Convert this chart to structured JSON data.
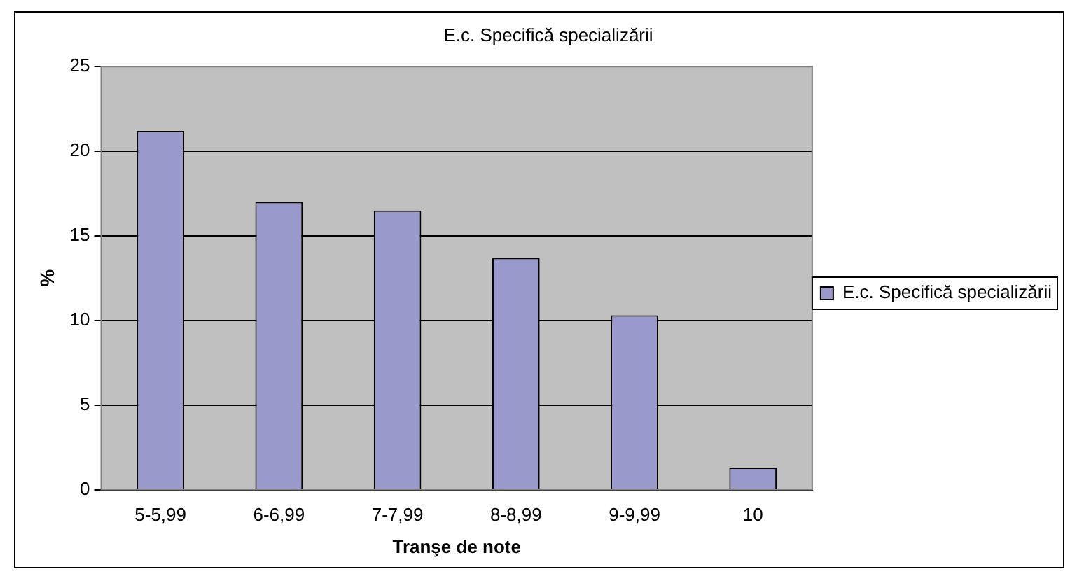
{
  "chart_data": {
    "type": "bar",
    "title": "E.c. Specifică specializării",
    "xlabel": "Tranşe de note",
    "ylabel": "%",
    "categories": [
      "5-5,99",
      "6-6,99",
      "7-7,99",
      "8-8,99",
      "9-9,99",
      "10"
    ],
    "series": [
      {
        "name": "E.c. Specifică specializării",
        "color": "#9999cc",
        "values": [
          21.2,
          17.0,
          16.5,
          13.7,
          10.3,
          1.3
        ]
      }
    ],
    "ylim": [
      0,
      25
    ],
    "yticks": [
      0,
      5,
      10,
      15,
      20,
      25
    ],
    "grid": "y",
    "legend": "right"
  }
}
